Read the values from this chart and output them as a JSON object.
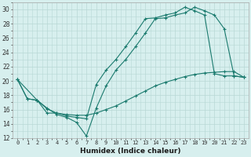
{
  "xlabel": "Humidex (Indice chaleur)",
  "bg_color": "#d7efee",
  "line_color": "#1a7a6e",
  "grid_color": "#b8d8d5",
  "xlim": [
    -0.5,
    23.5
  ],
  "ylim": [
    12,
    31
  ],
  "xticks": [
    0,
    1,
    2,
    3,
    4,
    5,
    6,
    7,
    8,
    9,
    10,
    11,
    12,
    13,
    14,
    15,
    16,
    17,
    18,
    19,
    20,
    21,
    22,
    23
  ],
  "yticks": [
    12,
    14,
    16,
    18,
    20,
    22,
    24,
    26,
    28,
    30
  ],
  "line1_x": [
    0,
    1,
    2,
    3,
    4,
    5,
    6,
    7,
    8,
    9,
    10,
    11,
    12,
    13,
    14,
    15,
    16,
    17,
    18,
    19,
    20,
    21,
    22,
    23
  ],
  "line1_y": [
    20.2,
    17.5,
    17.3,
    16.2,
    15.3,
    14.9,
    14.2,
    12.3,
    16.2,
    19.3,
    21.5,
    23.0,
    24.8,
    26.7,
    28.7,
    28.8,
    29.2,
    29.5,
    30.3,
    29.8,
    29.2,
    27.3,
    20.7,
    20.5
  ],
  "line2_x": [
    0,
    1,
    2,
    3,
    4,
    5,
    6,
    7,
    8,
    9,
    10,
    11,
    12,
    13,
    14,
    15,
    16,
    17,
    18,
    19,
    20,
    21,
    22,
    23
  ],
  "line2_y": [
    20.2,
    17.5,
    17.3,
    15.5,
    15.5,
    15.3,
    15.2,
    15.2,
    15.5,
    16.0,
    16.5,
    17.2,
    17.9,
    18.6,
    19.3,
    19.8,
    20.2,
    20.6,
    20.9,
    21.1,
    21.2,
    21.3,
    21.3,
    20.5
  ],
  "line3_x": [
    0,
    2,
    3,
    4,
    5,
    6,
    7,
    8,
    9,
    10,
    11,
    12,
    13,
    14,
    15,
    16,
    17,
    18,
    19,
    20,
    21,
    22,
    23
  ],
  "line3_y": [
    20.2,
    17.3,
    16.1,
    15.5,
    15.1,
    14.9,
    14.7,
    19.5,
    21.5,
    23.0,
    24.8,
    26.7,
    28.7,
    28.8,
    29.2,
    29.5,
    30.3,
    29.8,
    29.2,
    21.0,
    20.7,
    20.7,
    20.5
  ]
}
